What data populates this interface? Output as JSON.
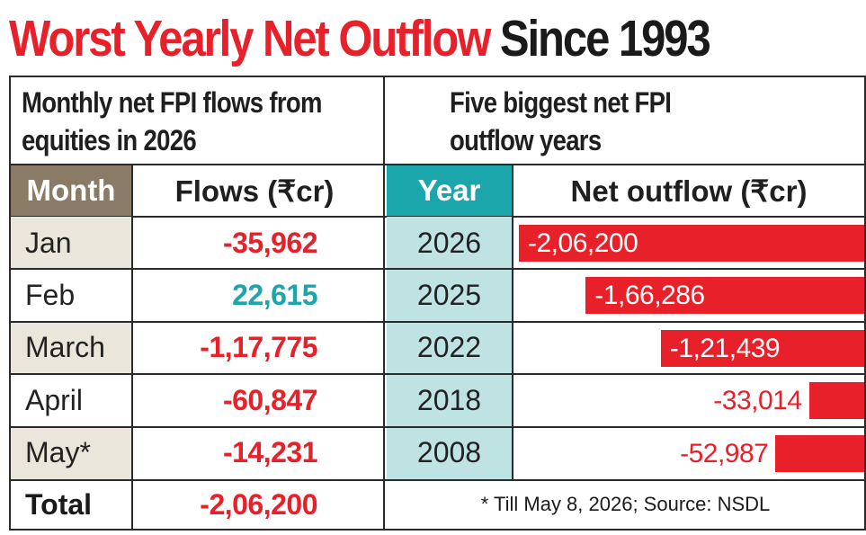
{
  "title": {
    "part1": "Worst Yearly Net Outflow",
    "part2": "Since 1993",
    "part1_color": "#e8202a",
    "part2_color": "#1a1a1a"
  },
  "left_panel": {
    "heading_line1": "Monthly net FPI flows from",
    "heading_line2": "equities in 2026",
    "col_month": "Month",
    "col_flows": "Flows (₹cr)",
    "total_label": "Total",
    "total_value": "-2,06,200"
  },
  "right_panel": {
    "heading_line1": "Five biggest net FPI",
    "heading_line2": "outflow years",
    "col_year": "Year",
    "col_outflow": "Net outflow (₹cr)",
    "footnote": "* Till May 8, 2026; Source: NSDL"
  },
  "colors": {
    "negative": "#e8202a",
    "positive": "#1aa6aa",
    "month_header_bg": "#8a7b66",
    "year_header_bg": "#1aa6aa",
    "year_column_bg": "#bfe2e3",
    "month_row_alt_bg": "#ebe6dc"
  },
  "chart_data": [
    {
      "type": "table",
      "columns": [
        "Month",
        "Flows (₹cr)"
      ],
      "rows": [
        {
          "month": "Jan",
          "label": "-35,962",
          "value": -35962
        },
        {
          "month": "Feb",
          "label": "22,615",
          "value": 22615
        },
        {
          "month": "March",
          "label": "-1,17,775",
          "value": -117775
        },
        {
          "month": "April",
          "label": "-60,847",
          "value": -60847
        },
        {
          "month": "May*",
          "label": "-14,231",
          "value": -14231
        }
      ],
      "total": {
        "label": "Total",
        "value_label": "-2,06,200",
        "value": -206200
      }
    },
    {
      "type": "bar",
      "orientation": "horizontal",
      "categories": [
        "2026",
        "2025",
        "2022",
        "2018",
        "2008"
      ],
      "values": [
        -206200,
        -166286,
        -121439,
        -33014,
        -52987
      ],
      "labels": [
        "-2,06,200",
        "-1,66,286",
        "-1,21,439",
        "-33,014",
        "-52,987"
      ],
      "xlabel": "Net outflow (₹cr)",
      "ylabel": "Year",
      "bar_color": "#e8202a"
    }
  ]
}
